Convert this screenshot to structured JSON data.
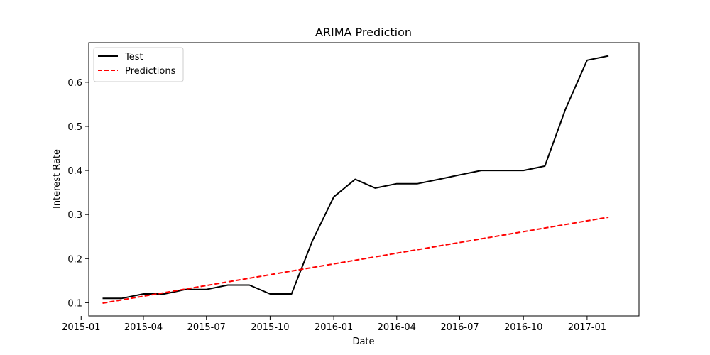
{
  "chart_data": {
    "type": "line",
    "title": "ARIMA Prediction",
    "xlabel": "Date",
    "ylabel": "Interest Rate",
    "xlim": [
      "2015-01-12",
      "2017-03-17"
    ],
    "ylim": [
      0.07,
      0.69
    ],
    "x_ticks": [
      "2015-01-01",
      "2015-04-01",
      "2015-07-01",
      "2015-10-01",
      "2016-01-01",
      "2016-04-01",
      "2016-07-01",
      "2016-10-01",
      "2017-01-01"
    ],
    "x_tick_labels": [
      "2015-01",
      "2015-04",
      "2015-07",
      "2015-10",
      "2016-01",
      "2016-04",
      "2016-07",
      "2016-10",
      "2017-01"
    ],
    "y_ticks": [
      0.1,
      0.2,
      0.3,
      0.4,
      0.5,
      0.6
    ],
    "y_tick_labels": [
      "0.1",
      "0.2",
      "0.3",
      "0.4",
      "0.5",
      "0.6"
    ],
    "grid": false,
    "legend_position": "upper-left",
    "series": [
      {
        "name": "Test",
        "color": "#000000",
        "style": "solid",
        "x": [
          "2015-02-01",
          "2015-03-01",
          "2015-04-01",
          "2015-05-01",
          "2015-06-01",
          "2015-07-01",
          "2015-08-01",
          "2015-09-01",
          "2015-10-01",
          "2015-11-01",
          "2015-12-01",
          "2016-01-01",
          "2016-02-01",
          "2016-03-01",
          "2016-04-01",
          "2016-05-01",
          "2016-06-01",
          "2016-07-01",
          "2016-08-01",
          "2016-09-01",
          "2016-10-01",
          "2016-11-01",
          "2016-12-01",
          "2017-01-01",
          "2017-02-01"
        ],
        "y": [
          0.11,
          0.11,
          0.12,
          0.12,
          0.13,
          0.13,
          0.14,
          0.14,
          0.12,
          0.12,
          0.24,
          0.34,
          0.38,
          0.36,
          0.37,
          0.37,
          0.38,
          0.39,
          0.4,
          0.4,
          0.4,
          0.41,
          0.54,
          0.65,
          0.66
        ]
      },
      {
        "name": "Predictions",
        "color": "#ff0000",
        "style": "dashed",
        "x": [
          "2015-02-01",
          "2017-02-01"
        ],
        "y": [
          0.099,
          0.294
        ]
      }
    ]
  }
}
